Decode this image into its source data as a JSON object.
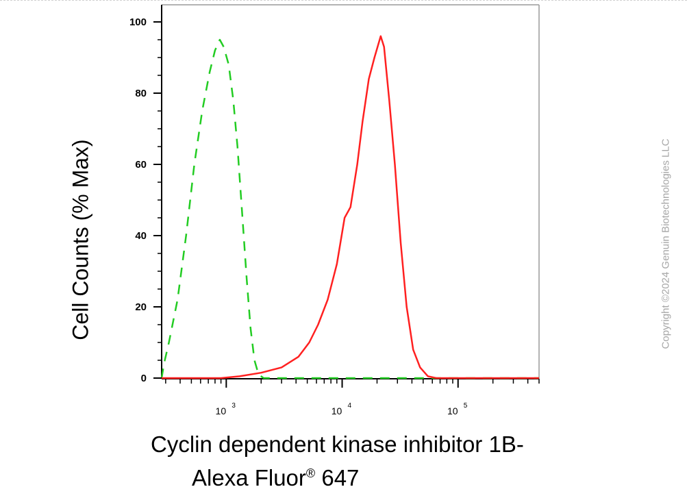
{
  "chart_data": {
    "type": "line",
    "title": "",
    "ylabel": "Cell Counts (% Max)",
    "xlabel_line1": "Cyclin dependent kinase inhibitor 1B-",
    "xlabel_line2_prefix": "Alexa Fluor",
    "xlabel_line2_sup": "®",
    "xlabel_line2_suffix": " 647",
    "x_scale": "log",
    "xlim": [
      277,
      500000
    ],
    "ylim": [
      0,
      105
    ],
    "y_ticks": [
      "0",
      "20",
      "40",
      "60",
      "80",
      "100"
    ],
    "x_ticks": [
      {
        "base": "10",
        "exp": "3",
        "value": 1000
      },
      {
        "base": "10",
        "exp": "4",
        "value": 10000
      },
      {
        "base": "10",
        "exp": "5",
        "value": 100000
      }
    ],
    "grid": false,
    "series": [
      {
        "color": "#22cc22",
        "dash": true,
        "points": [
          [
            277,
            0
          ],
          [
            290,
            4
          ],
          [
            320,
            10
          ],
          [
            380,
            22
          ],
          [
            450,
            40
          ],
          [
            530,
            60
          ],
          [
            620,
            75
          ],
          [
            720,
            86
          ],
          [
            800,
            92
          ],
          [
            880,
            95
          ],
          [
            950,
            93
          ],
          [
            1050,
            88
          ],
          [
            1150,
            78
          ],
          [
            1250,
            65
          ],
          [
            1380,
            45
          ],
          [
            1500,
            28
          ],
          [
            1620,
            14
          ],
          [
            1750,
            5
          ],
          [
            1900,
            1
          ],
          [
            2100,
            0
          ],
          [
            3000,
            0
          ],
          [
            10000,
            0
          ],
          [
            100000,
            0
          ],
          [
            500000,
            0
          ]
        ]
      },
      {
        "color": "#ff2020",
        "dash": false,
        "points": [
          [
            277,
            0
          ],
          [
            900,
            0
          ],
          [
            1300,
            0.5
          ],
          [
            2000,
            1.5
          ],
          [
            3000,
            3
          ],
          [
            4200,
            6
          ],
          [
            5200,
            10
          ],
          [
            6200,
            15
          ],
          [
            7500,
            22
          ],
          [
            9000,
            32
          ],
          [
            10500,
            45
          ],
          [
            11800,
            48
          ],
          [
            13500,
            60
          ],
          [
            15000,
            72
          ],
          [
            17000,
            84
          ],
          [
            19000,
            90
          ],
          [
            21500,
            96
          ],
          [
            23000,
            93
          ],
          [
            25500,
            78
          ],
          [
            28500,
            60
          ],
          [
            32000,
            38
          ],
          [
            36000,
            20
          ],
          [
            41000,
            8
          ],
          [
            47000,
            3
          ],
          [
            55000,
            0.5
          ],
          [
            65000,
            0
          ],
          [
            100000,
            0
          ],
          [
            500000,
            0
          ]
        ]
      }
    ]
  },
  "copyright": "Copyright ©2024 Genuin Biotechnologies LLC"
}
